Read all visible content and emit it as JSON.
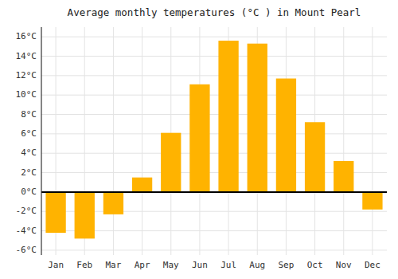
{
  "chart_data": {
    "type": "bar",
    "title": "Average monthly temperatures (°C ) in Mount Pearl",
    "categories": [
      "Jan",
      "Feb",
      "Mar",
      "Apr",
      "May",
      "Jun",
      "Jul",
      "Aug",
      "Sep",
      "Oct",
      "Nov",
      "Dec"
    ],
    "values": [
      -4.2,
      -4.8,
      -2.3,
      1.5,
      6.1,
      11.1,
      15.6,
      15.3,
      11.7,
      7.2,
      3.2,
      -1.8
    ],
    "color": "#FFB300",
    "ylim": [
      -6.5,
      17
    ],
    "yticks": [
      {
        "value": -6,
        "label": "-6°C"
      },
      {
        "value": -4,
        "label": "-4°C"
      },
      {
        "value": -2,
        "label": "-2°C"
      },
      {
        "value": 0,
        "label": "0°C"
      },
      {
        "value": 2,
        "label": "2°C"
      },
      {
        "value": 4,
        "label": "4°C"
      },
      {
        "value": 6,
        "label": "6°C"
      },
      {
        "value": 8,
        "label": "8°C"
      },
      {
        "value": 10,
        "label": "10°C"
      },
      {
        "value": 12,
        "label": "12°C"
      },
      {
        "value": 14,
        "label": "14°C"
      },
      {
        "value": 16,
        "label": "16°C"
      }
    ],
    "grid": true
  }
}
